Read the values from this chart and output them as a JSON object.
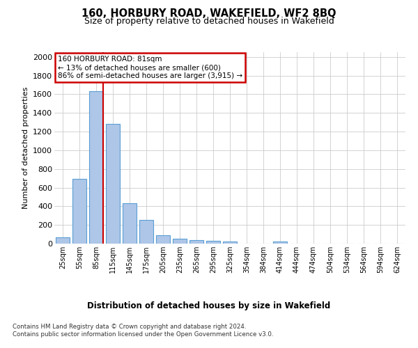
{
  "title": "160, HORBURY ROAD, WAKEFIELD, WF2 8BQ",
  "subtitle": "Size of property relative to detached houses in Wakefield",
  "xlabel": "Distribution of detached houses by size in Wakefield",
  "ylabel": "Number of detached properties",
  "bar_color": "#aec6e8",
  "bar_edge_color": "#5a9fd4",
  "categories": [
    "25sqm",
    "55sqm",
    "85sqm",
    "115sqm",
    "145sqm",
    "175sqm",
    "205sqm",
    "235sqm",
    "265sqm",
    "295sqm",
    "325sqm",
    "354sqm",
    "384sqm",
    "414sqm",
    "444sqm",
    "474sqm",
    "504sqm",
    "534sqm",
    "564sqm",
    "594sqm",
    "624sqm"
  ],
  "values": [
    65,
    690,
    1635,
    1285,
    435,
    255,
    90,
    55,
    40,
    30,
    25,
    0,
    0,
    20,
    0,
    0,
    0,
    0,
    0,
    0,
    0
  ],
  "ylim": [
    0,
    2050
  ],
  "yticks": [
    0,
    200,
    400,
    600,
    800,
    1000,
    1200,
    1400,
    1600,
    1800,
    2000
  ],
  "vline_x_index": 2,
  "annotation_text": "160 HORBURY ROAD: 81sqm\n← 13% of detached houses are smaller (600)\n86% of semi-detached houses are larger (3,915) →",
  "annotation_box_color": "#ffffff",
  "annotation_border_color": "#cc0000",
  "vline_color": "#cc0000",
  "footer_line1": "Contains HM Land Registry data © Crown copyright and database right 2024.",
  "footer_line2": "Contains public sector information licensed under the Open Government Licence v3.0.",
  "background_color": "#ffffff",
  "grid_color": "#cccccc"
}
